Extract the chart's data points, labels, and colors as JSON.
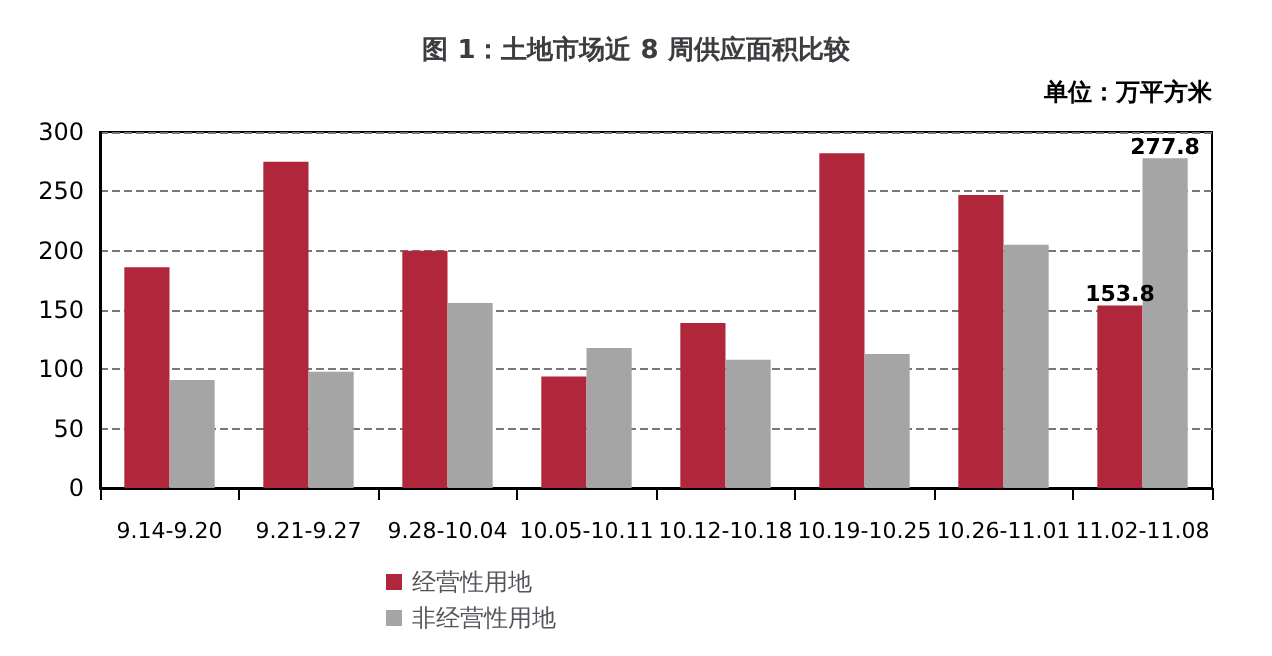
{
  "chart_data": {
    "type": "bar",
    "title": "图 1：土地市场近 8 周供应面积比较",
    "annotations": [
      "单位：万平方米"
    ],
    "categories": [
      "9.14-9.20",
      "9.21-9.27",
      "9.28-10.04",
      "10.05-10.11",
      "10.12-10.18",
      "10.19-10.25",
      "10.26-11.01",
      "11.02-11.08"
    ],
    "series": [
      {
        "name": "经营性用地",
        "color": "#b0263a",
        "values": [
          186,
          275,
          200,
          94,
          139,
          282,
          247,
          153.8
        ],
        "value_labels": [
          null,
          null,
          null,
          null,
          null,
          null,
          null,
          "153.8"
        ]
      },
      {
        "name": "非经营性用地",
        "color": "#a5a5a5",
        "values": [
          91,
          98,
          156,
          118,
          108,
          113,
          205,
          277.8
        ],
        "value_labels": [
          null,
          null,
          null,
          null,
          null,
          null,
          null,
          "277.8"
        ]
      }
    ],
    "ylim": [
      0,
      300
    ],
    "yticks": [
      0,
      50,
      100,
      150,
      200,
      250,
      300
    ],
    "grid": "y",
    "legend": "bottom"
  }
}
